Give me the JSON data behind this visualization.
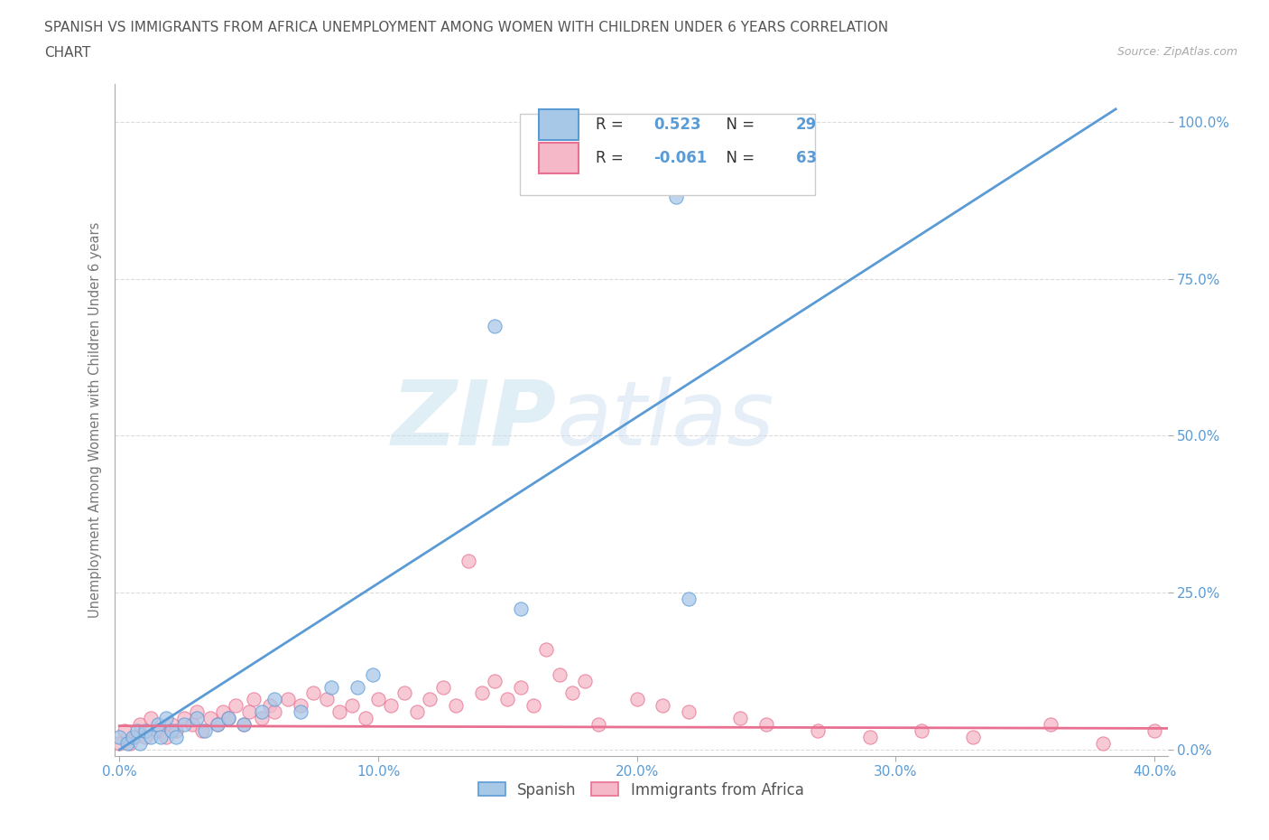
{
  "title_line1": "SPANISH VS IMMIGRANTS FROM AFRICA UNEMPLOYMENT AMONG WOMEN WITH CHILDREN UNDER 6 YEARS CORRELATION",
  "title_line2": "CHART",
  "source": "Source: ZipAtlas.com",
  "ylabel": "Unemployment Among Women with Children Under 6 years",
  "xlim": [
    -0.002,
    0.405
  ],
  "ylim": [
    -0.01,
    1.06
  ],
  "xticks": [
    0.0,
    0.1,
    0.2,
    0.3,
    0.4
  ],
  "yticks": [
    0.0,
    0.25,
    0.5,
    0.75,
    1.0
  ],
  "xtick_labels": [
    "0.0%",
    "10.0%",
    "20.0%",
    "30.0%",
    "40.0%"
  ],
  "ytick_labels": [
    "0.0%",
    "25.0%",
    "50.0%",
    "75.0%",
    "100.0%"
  ],
  "spanish_color": "#a8c8e8",
  "spanish_edge_color": "#5b9bd5",
  "africa_color": "#f4b8c8",
  "africa_edge_color": "#e87090",
  "spanish_line_color": "#5b9bd5",
  "africa_line_color": "#e87090",
  "R_spanish": 0.523,
  "N_spanish": 29,
  "R_africa": -0.061,
  "N_africa": 63,
  "watermark_zip": "ZIP",
  "watermark_atlas": "atlas",
  "background_color": "#ffffff",
  "grid_color": "#cccccc",
  "title_color": "#555555",
  "axis_label_color": "#777777",
  "tick_label_color": "#5b9bd5",
  "legend_box_color": "#5b9bd5",
  "spanish_line_x": [
    0.0,
    0.385
  ],
  "spanish_line_y": [
    0.0,
    1.02
  ],
  "africa_line_x": [
    0.0,
    0.405
  ],
  "africa_line_y": [
    0.038,
    0.034
  ],
  "spanish_x": [
    0.0,
    0.003,
    0.005,
    0.007,
    0.008,
    0.01,
    0.012,
    0.015,
    0.016,
    0.018,
    0.02,
    0.022,
    0.025,
    0.03,
    0.033,
    0.038,
    0.042,
    0.048,
    0.055,
    0.06,
    0.07,
    0.082,
    0.092,
    0.098,
    0.145,
    0.155,
    0.215,
    0.215,
    0.22
  ],
  "spanish_y": [
    0.02,
    0.01,
    0.02,
    0.03,
    0.01,
    0.03,
    0.02,
    0.04,
    0.02,
    0.05,
    0.03,
    0.02,
    0.04,
    0.05,
    0.03,
    0.04,
    0.05,
    0.04,
    0.06,
    0.08,
    0.06,
    0.1,
    0.1,
    0.12,
    0.675,
    0.225,
    0.935,
    0.88,
    0.24
  ],
  "africa_x": [
    0.0,
    0.002,
    0.004,
    0.006,
    0.008,
    0.01,
    0.012,
    0.015,
    0.018,
    0.02,
    0.022,
    0.025,
    0.028,
    0.03,
    0.032,
    0.035,
    0.038,
    0.04,
    0.042,
    0.045,
    0.048,
    0.05,
    0.052,
    0.055,
    0.058,
    0.06,
    0.065,
    0.07,
    0.075,
    0.08,
    0.085,
    0.09,
    0.095,
    0.1,
    0.105,
    0.11,
    0.115,
    0.12,
    0.125,
    0.13,
    0.14,
    0.145,
    0.15,
    0.155,
    0.16,
    0.17,
    0.175,
    0.18,
    0.2,
    0.21,
    0.22,
    0.24,
    0.25,
    0.27,
    0.29,
    0.31,
    0.33,
    0.36,
    0.38,
    0.4,
    0.135,
    0.165,
    0.185
  ],
  "africa_y": [
    0.01,
    0.03,
    0.01,
    0.02,
    0.04,
    0.02,
    0.05,
    0.03,
    0.02,
    0.04,
    0.03,
    0.05,
    0.04,
    0.06,
    0.03,
    0.05,
    0.04,
    0.06,
    0.05,
    0.07,
    0.04,
    0.06,
    0.08,
    0.05,
    0.07,
    0.06,
    0.08,
    0.07,
    0.09,
    0.08,
    0.06,
    0.07,
    0.05,
    0.08,
    0.07,
    0.09,
    0.06,
    0.08,
    0.1,
    0.07,
    0.09,
    0.11,
    0.08,
    0.1,
    0.07,
    0.12,
    0.09,
    0.11,
    0.08,
    0.07,
    0.06,
    0.05,
    0.04,
    0.03,
    0.02,
    0.03,
    0.02,
    0.04,
    0.01,
    0.03,
    0.3,
    0.16,
    0.04
  ]
}
